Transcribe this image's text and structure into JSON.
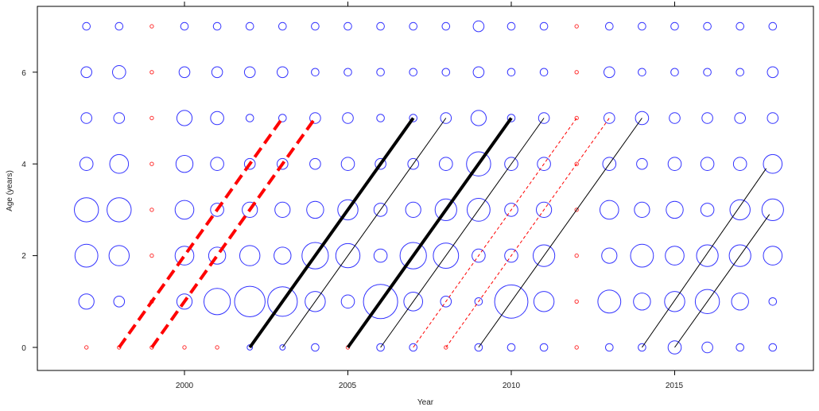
{
  "chart_data": {
    "type": "scatter",
    "title": "",
    "xlabel": "Year",
    "ylabel": "Age (years)",
    "xlim": [
      1995.7,
      2019.2
    ],
    "ylim": [
      -0.5,
      7.3
    ],
    "x_ticks": [
      "2000",
      "2005",
      "2010",
      "2015"
    ],
    "y_ticks": [
      "0",
      "2",
      "4",
      "6"
    ],
    "years": [
      1997,
      1998,
      1999,
      2000,
      2001,
      2002,
      2003,
      2004,
      2005,
      2006,
      2007,
      2008,
      2009,
      2010,
      2011,
      2012,
      2013,
      2014,
      2015,
      2016,
      2017,
      2018
    ],
    "ages": [
      0,
      1,
      2,
      3,
      4,
      5,
      6,
      7
    ],
    "bubble_color": "#3333ff",
    "missing_color": "#ff3333",
    "missing_years": [
      1999,
      2012
    ],
    "missing_cells": [
      [
        1997,
        0
      ],
      [
        1998,
        0
      ],
      [
        1999,
        0
      ],
      [
        2000,
        0
      ],
      [
        2001,
        0
      ],
      [
        2005,
        0
      ],
      [
        2008,
        0
      ]
    ],
    "bubble_sizes": [
      [
        1,
        4,
        9,
        10,
        3,
        2,
        2,
        1
      ],
      [
        1,
        2,
        7,
        10,
        6,
        2,
        3,
        1
      ],
      [
        1,
        1,
        1,
        1,
        1,
        1,
        1,
        1
      ],
      [
        1,
        4,
        6,
        6,
        5,
        4,
        2,
        1
      ],
      [
        1,
        12,
        5,
        3,
        3,
        3,
        2,
        1
      ],
      [
        0.5,
        16,
        7,
        4,
        2,
        1,
        2,
        1
      ],
      [
        0.5,
        15,
        5,
        4,
        2,
        1,
        2,
        1
      ],
      [
        1,
        7,
        12,
        5,
        2,
        2,
        1,
        1
      ],
      [
        1,
        3,
        10,
        7,
        3,
        2,
        1,
        1
      ],
      [
        1,
        20,
        3,
        3,
        2,
        1,
        1,
        1
      ],
      [
        1,
        6,
        12,
        4,
        2,
        1,
        1,
        1
      ],
      [
        1,
        2,
        11,
        8,
        3,
        2,
        1,
        1
      ],
      [
        1,
        1,
        3,
        9,
        10,
        4,
        2,
        2
      ],
      [
        1,
        19,
        3,
        3,
        3,
        1,
        1,
        1
      ],
      [
        1,
        7,
        8,
        4,
        3,
        2,
        1,
        1
      ],
      [
        1,
        1,
        1,
        1,
        1,
        1,
        1,
        1
      ],
      [
        1,
        9,
        4,
        6,
        3,
        2,
        2,
        1
      ],
      [
        1,
        5,
        9,
        4,
        2,
        3,
        1,
        1
      ],
      [
        3,
        7,
        6,
        5,
        3,
        2,
        1,
        1
      ],
      [
        2,
        10,
        8,
        3,
        3,
        2,
        1,
        1
      ],
      [
        1,
        5,
        8,
        7,
        3,
        2,
        1,
        1
      ],
      [
        1,
        1,
        6,
        8,
        6,
        2,
        2,
        1
      ]
    ],
    "cohort_lines": [
      {
        "x0": 1998,
        "x1": 2003,
        "color": "#ff0000",
        "style": "dashed",
        "weight": "heavy"
      },
      {
        "x0": 1999,
        "x1": 2004,
        "color": "#ff0000",
        "style": "dashed",
        "weight": "heavy"
      },
      {
        "x0": 2002,
        "x1": 2007,
        "color": "#000000",
        "style": "solid",
        "weight": "heavy"
      },
      {
        "x0": 2003,
        "x1": 2008,
        "color": "#000000",
        "style": "solid",
        "weight": "thin"
      },
      {
        "x0": 2005,
        "x1": 2010,
        "color": "#000000",
        "style": "solid",
        "weight": "heavy"
      },
      {
        "x0": 2006,
        "x1": 2011,
        "color": "#000000",
        "style": "solid",
        "weight": "thin"
      },
      {
        "x0": 2007,
        "x1": 2012,
        "color": "#ff0000",
        "style": "dashed",
        "weight": "thin"
      },
      {
        "x0": 2008,
        "x1": 2013,
        "color": "#ff0000",
        "style": "dashed",
        "weight": "thin"
      },
      {
        "x0": 2009,
        "x1": 2014,
        "color": "#000000",
        "style": "solid",
        "weight": "thin"
      },
      {
        "x0": 2014,
        "x1": 2017.8,
        "y1": 3.9,
        "color": "#000000",
        "style": "solid",
        "weight": "thin"
      },
      {
        "x0": 2015,
        "x1": 2017.9,
        "y1": 2.9,
        "color": "#000000",
        "style": "solid",
        "weight": "thin"
      }
    ]
  }
}
